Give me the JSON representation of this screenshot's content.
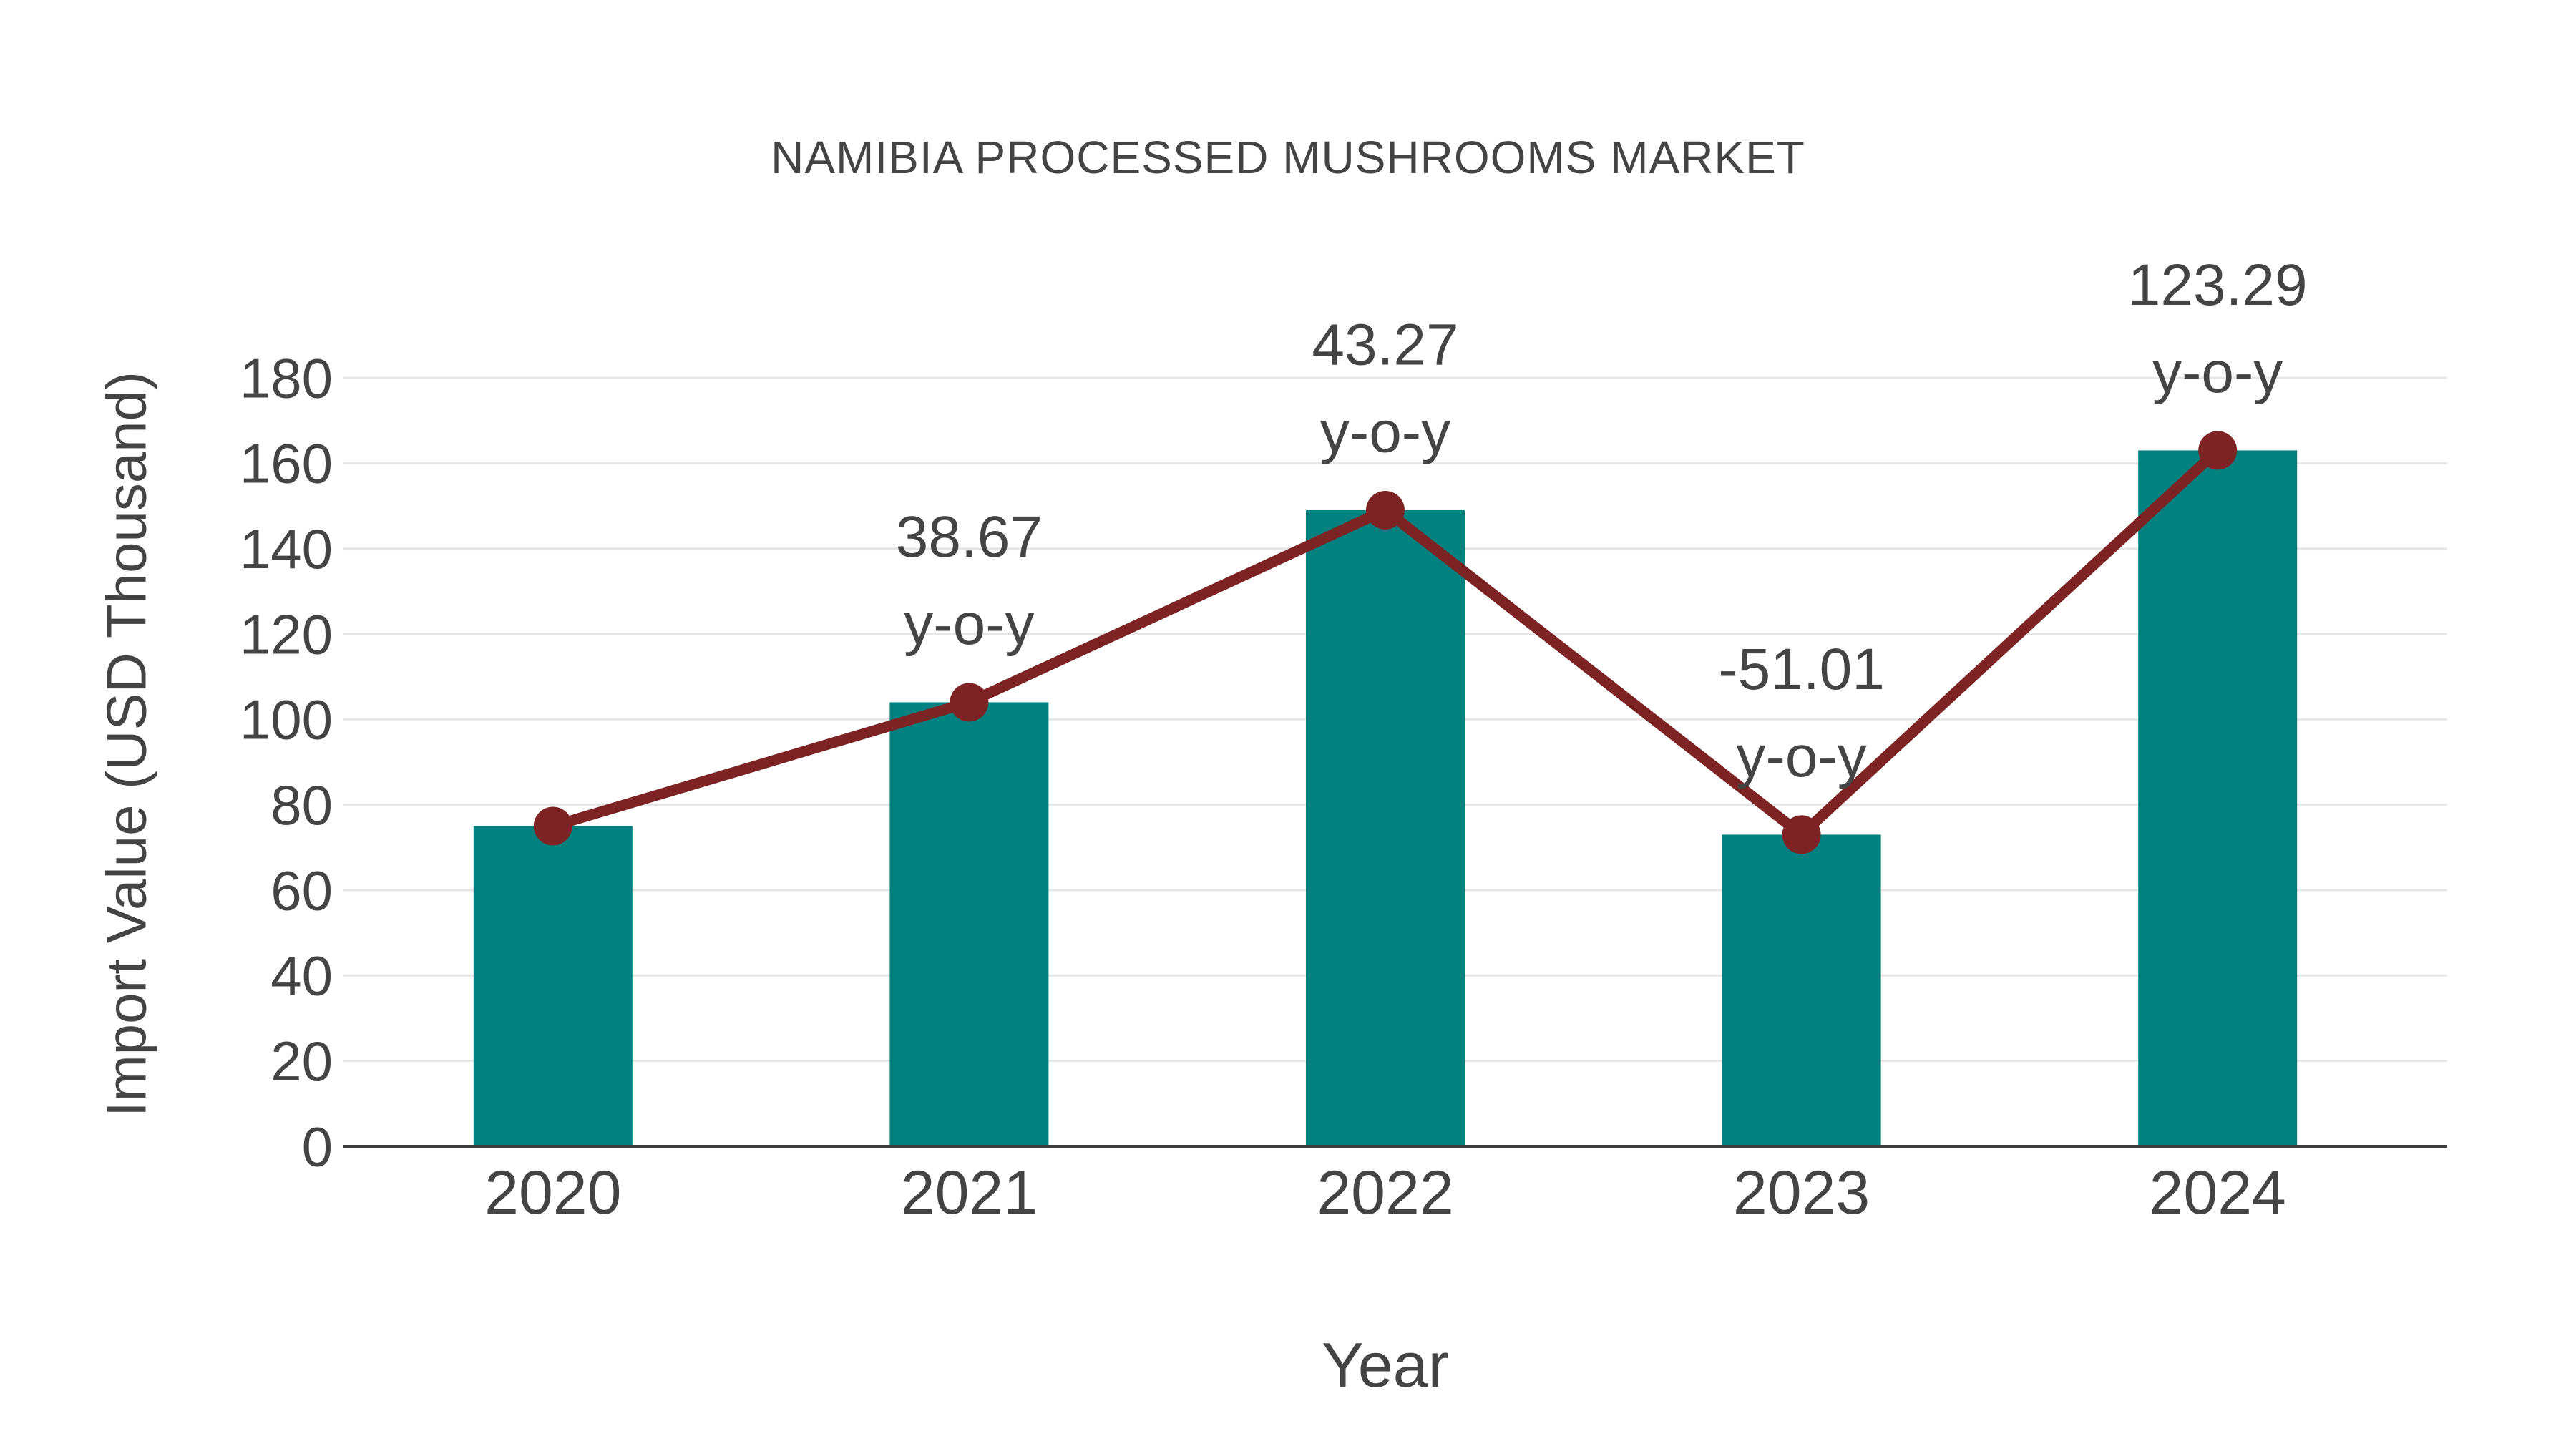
{
  "page": {
    "background": "#ffffff"
  },
  "chart_data": {
    "type": "bar",
    "subtype": "bar-with-line-overlay",
    "title": "NAMIBIA PROCESSED MUSHROOMS MARKET",
    "xlabel": "Year",
    "ylabel": "Import Value (USD Thousand)",
    "categories": [
      "2020",
      "2021",
      "2022",
      "2023",
      "2024"
    ],
    "series": [
      {
        "name": "Import Value (USD Thousand)",
        "type": "bar",
        "values": [
          75,
          104,
          149,
          73,
          163
        ]
      },
      {
        "name": "y-o-y trend line",
        "type": "line",
        "values": [
          75,
          104,
          149,
          73,
          163
        ]
      }
    ],
    "annotations": [
      {
        "year": "2021",
        "line1": "38.67",
        "line2": "y-o-y"
      },
      {
        "year": "2022",
        "line1": "43.27",
        "line2": "y-o-y"
      },
      {
        "year": "2023",
        "line1": "-51.01",
        "line2": "y-o-y"
      },
      {
        "year": "2024",
        "line1": "123.29",
        "line2": "y-o-y"
      }
    ],
    "yoy_percent": {
      "2021": 38.67,
      "2022": 43.27,
      "2023": -51.01,
      "2024": 123.29
    },
    "ylim": [
      0,
      180
    ],
    "yticks": [
      0,
      20,
      40,
      60,
      80,
      100,
      120,
      140,
      160,
      180
    ],
    "grid": "horizontal",
    "legend": "none",
    "colors": {
      "bar": "#028180",
      "line": "#7E2323",
      "text": "#444444",
      "grid": "#E7E7E7",
      "axis": "#3D3D3D",
      "background": "#FFFFFF"
    }
  }
}
